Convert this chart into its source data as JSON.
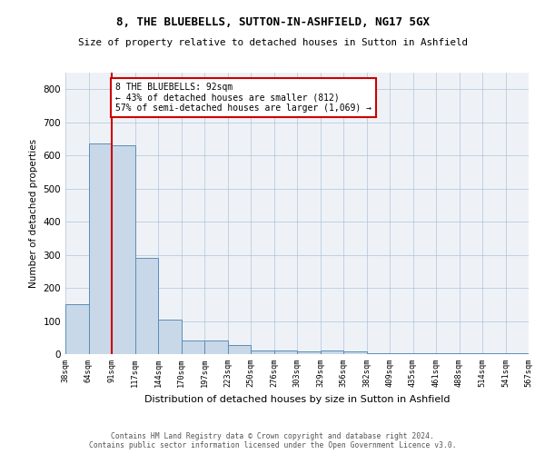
{
  "title1": "8, THE BLUEBELLS, SUTTON-IN-ASHFIELD, NG17 5GX",
  "title2": "Size of property relative to detached houses in Sutton in Ashfield",
  "xlabel": "Distribution of detached houses by size in Sutton in Ashfield",
  "ylabel": "Number of detached properties",
  "footer1": "Contains HM Land Registry data © Crown copyright and database right 2024.",
  "footer2": "Contains public sector information licensed under the Open Government Licence v3.0.",
  "bar_values": [
    150,
    635,
    630,
    290,
    103,
    42,
    42,
    27,
    10,
    10,
    7,
    10,
    7,
    3,
    3,
    2,
    2,
    2,
    2,
    2
  ],
  "bin_labels": [
    "38sqm",
    "64sqm",
    "91sqm",
    "117sqm",
    "144sqm",
    "170sqm",
    "197sqm",
    "223sqm",
    "250sqm",
    "276sqm",
    "303sqm",
    "329sqm",
    "356sqm",
    "382sqm",
    "409sqm",
    "435sqm",
    "461sqm",
    "488sqm",
    "514sqm",
    "541sqm",
    "567sqm"
  ],
  "bar_color": "#c8d8e8",
  "bar_edge_color": "#5b8db8",
  "annotation_line1": "8 THE BLUEBELLS: 92sqm",
  "annotation_line2": "← 43% of detached houses are smaller (812)",
  "annotation_line3": "57% of semi-detached houses are larger (1,069) →",
  "vline_bin_index": 2,
  "annotation_box_color": "#ffffff",
  "annotation_box_edge_color": "#cc0000",
  "vline_color": "#cc0000",
  "background_color": "#eef2f7",
  "ylim": [
    0,
    850
  ],
  "yticks": [
    0,
    100,
    200,
    300,
    400,
    500,
    600,
    700,
    800
  ]
}
